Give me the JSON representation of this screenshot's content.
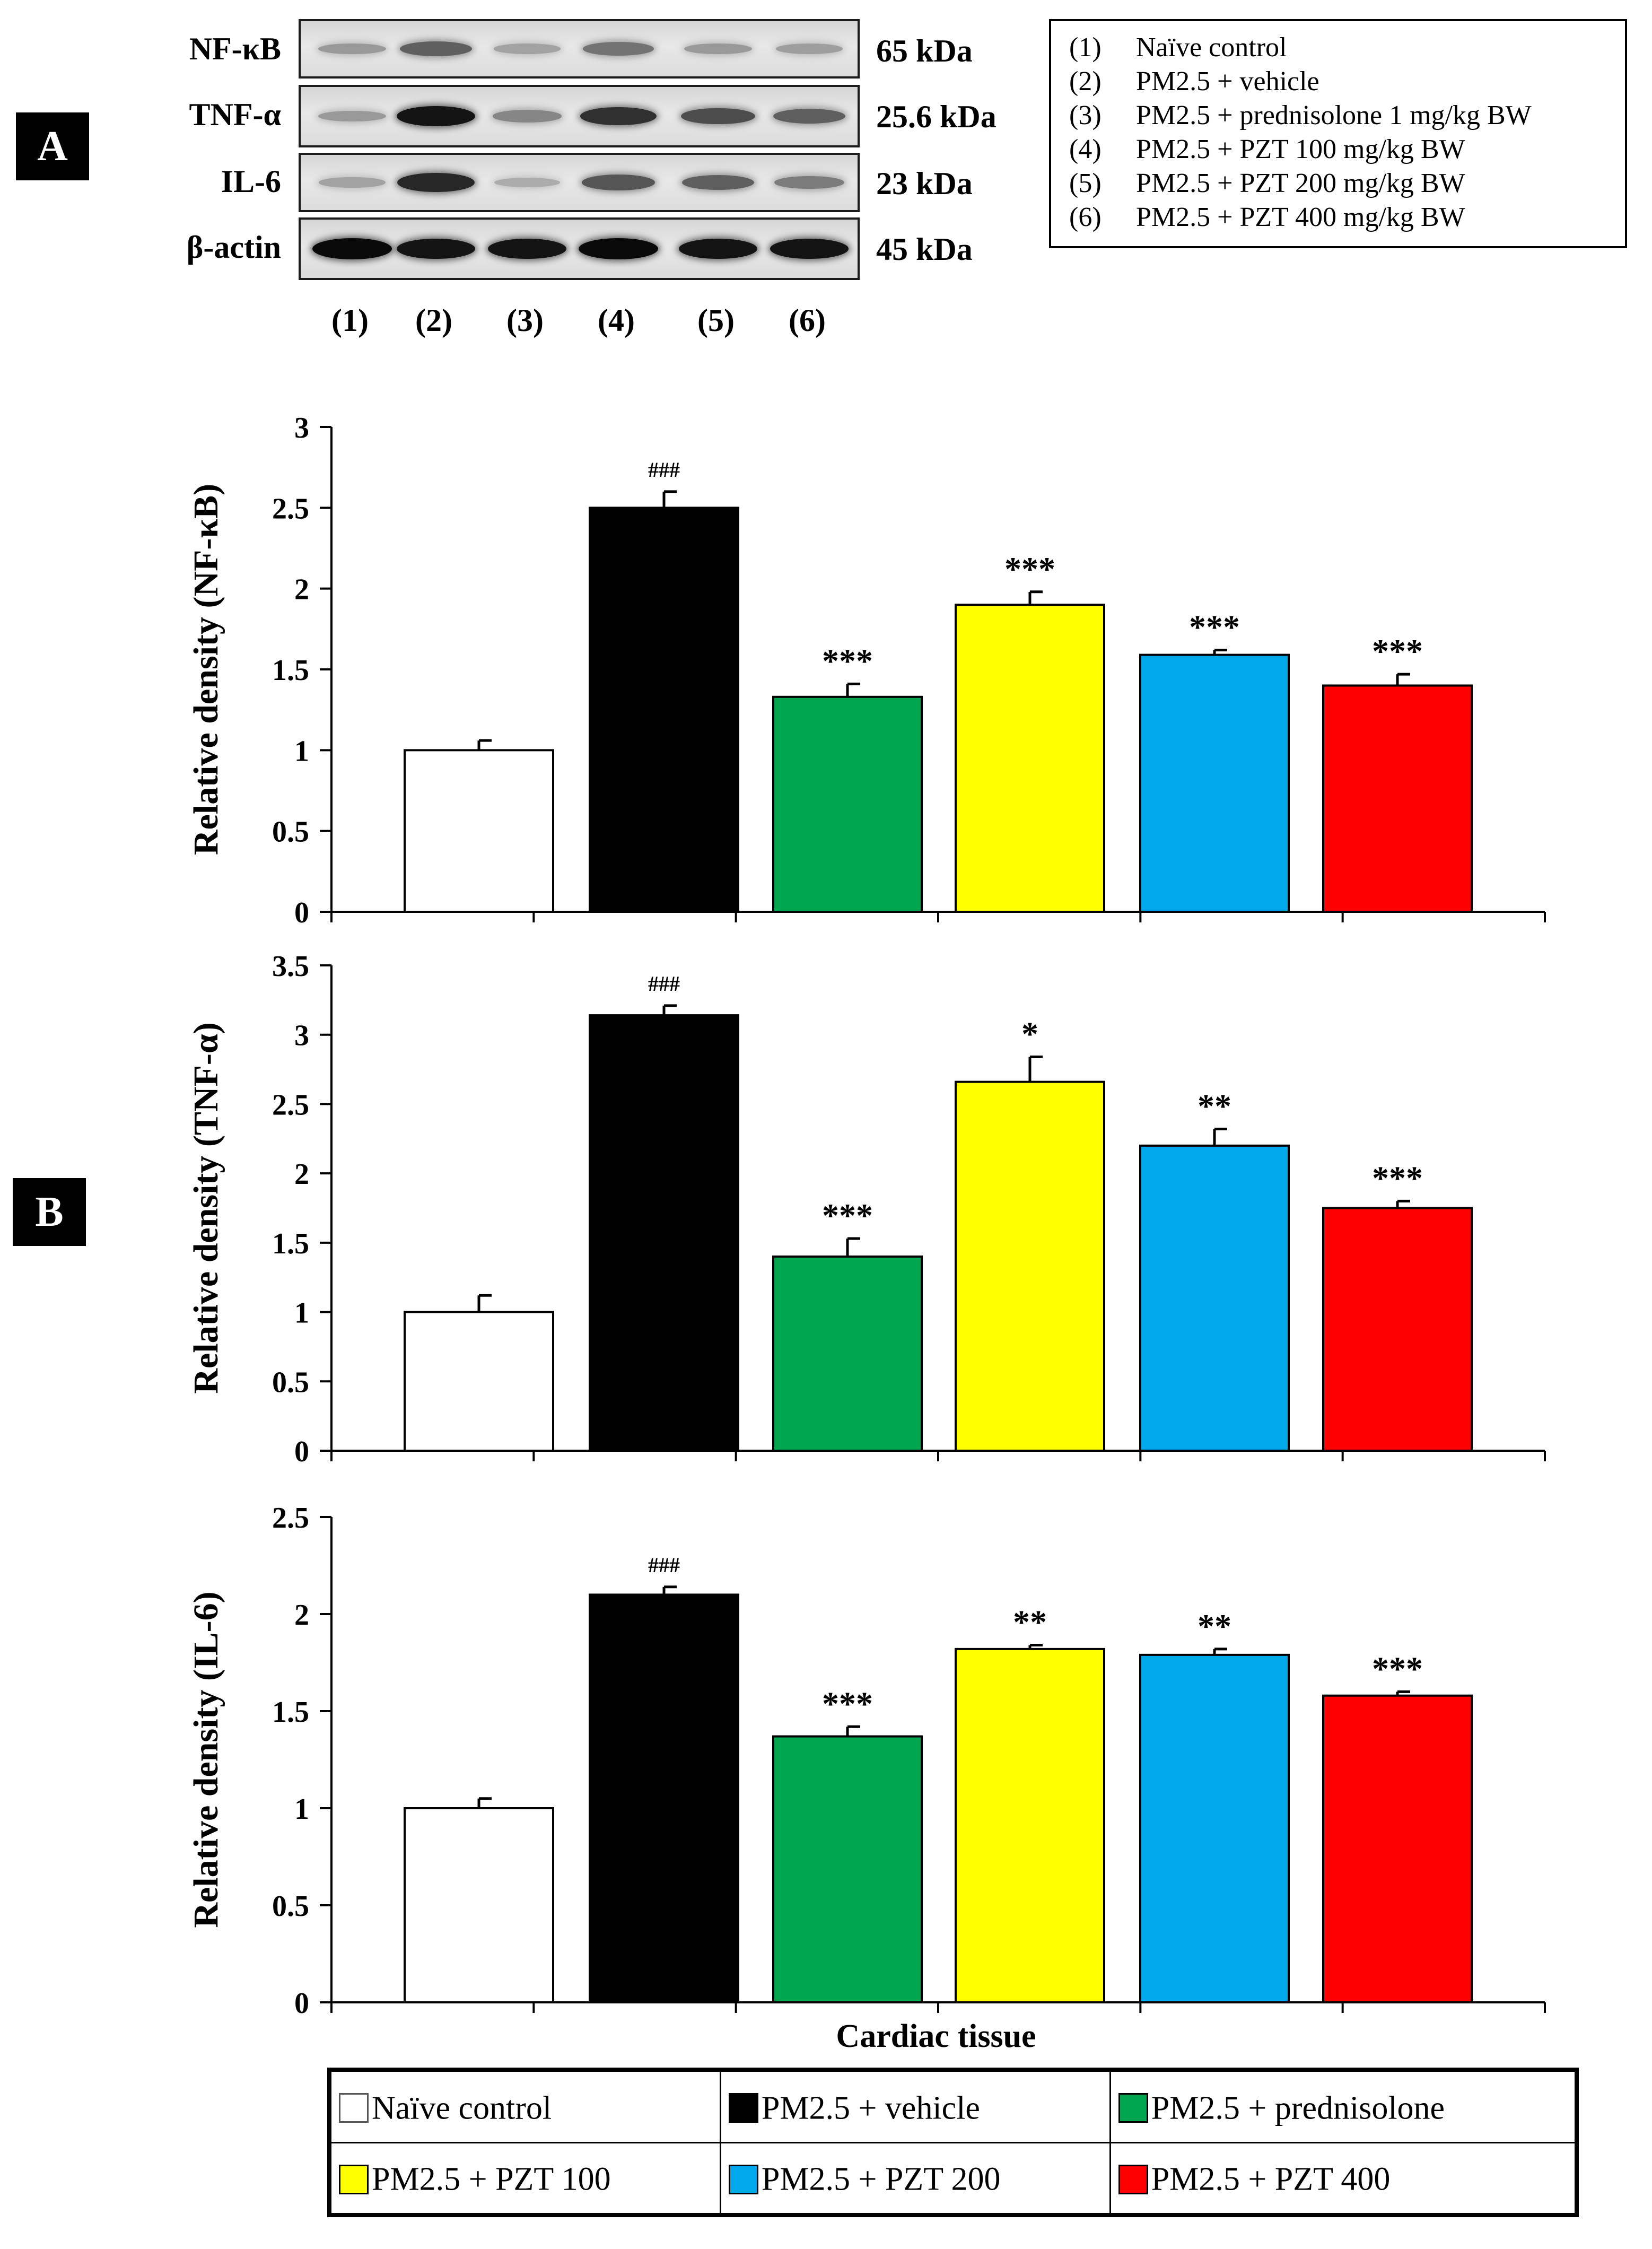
{
  "panel_labels": {
    "a": "A",
    "b": "B"
  },
  "blot": {
    "rows": [
      {
        "protein": "NF-κB",
        "kda": "65 kDa",
        "intensity": [
          0.25,
          0.55,
          0.2,
          0.45,
          0.25,
          0.22
        ]
      },
      {
        "protein": "TNF-α",
        "kda": "25.6 kDa",
        "intensity": [
          0.25,
          0.95,
          0.35,
          0.8,
          0.65,
          0.55
        ]
      },
      {
        "protein": "IL-6",
        "kda": "23 kDa",
        "intensity": [
          0.2,
          0.85,
          0.15,
          0.6,
          0.55,
          0.4
        ]
      },
      {
        "protein": "β-actin",
        "kda": "45 kDa",
        "intensity": [
          1.0,
          0.95,
          0.95,
          1.0,
          0.95,
          0.95
        ]
      }
    ],
    "lanes": [
      "(1)",
      "(2)",
      "(3)",
      "(4)",
      "(5)",
      "(6)"
    ]
  },
  "group_legend": [
    {
      "num": "(1)",
      "label": "Naïve control"
    },
    {
      "num": "(2)",
      "label": "PM2.5 + vehicle"
    },
    {
      "num": "(3)",
      "label": "PM2.5 + prednisolone 1 mg/kg BW"
    },
    {
      "num": "(4)",
      "label": "PM2.5 + PZT 100 mg/kg BW"
    },
    {
      "num": "(5)",
      "label": "PM2.5 + PZT 200 mg/kg BW"
    },
    {
      "num": "(6)",
      "label": "PM2.5 + PZT 400 mg/kg BW"
    }
  ],
  "colors": [
    "#ffffff",
    "#000000",
    "#00a650",
    "#ffff00",
    "#00a8ec",
    "#ff0000"
  ],
  "chart_data": [
    {
      "type": "bar",
      "ylabel": "Relative density (NF-κB)",
      "ylim": [
        0,
        3
      ],
      "ticks": [
        0,
        0.5,
        1,
        1.5,
        2,
        2.5,
        3
      ],
      "tick_labels": [
        "0",
        "0.5",
        "1",
        "1.5",
        "2",
        "2.5",
        "3"
      ],
      "values": [
        1.0,
        2.5,
        1.33,
        1.9,
        1.59,
        1.4
      ],
      "errors": [
        0.06,
        0.1,
        0.08,
        0.08,
        0.03,
        0.07
      ],
      "annotations": [
        "",
        "###",
        "***",
        "***",
        "***",
        "***"
      ]
    },
    {
      "type": "bar",
      "ylabel": "Relative density (TNF-α)",
      "ylim": [
        0,
        3.5
      ],
      "ticks": [
        0,
        0.5,
        1,
        1.5,
        2,
        2.5,
        3,
        3.5
      ],
      "tick_labels": [
        "0",
        "0.5",
        "1",
        "1.5",
        "2",
        "2.5",
        "3",
        "3.5"
      ],
      "values": [
        1.0,
        3.14,
        1.4,
        2.66,
        2.2,
        1.75
      ],
      "errors": [
        0.12,
        0.07,
        0.13,
        0.18,
        0.12,
        0.05
      ],
      "annotations": [
        "",
        "###",
        "***",
        "*",
        "**",
        "***"
      ]
    },
    {
      "type": "bar",
      "ylabel": "Relative density (IL-6)",
      "xlabel": "Cardiac tissue",
      "ylim": [
        0,
        2.5
      ],
      "ticks": [
        0,
        0.5,
        1,
        1.5,
        2,
        2.5
      ],
      "tick_labels": [
        "0",
        "0.5",
        "1",
        "1.5",
        "2",
        "2.5"
      ],
      "values": [
        1.0,
        2.1,
        1.37,
        1.82,
        1.79,
        1.58
      ],
      "errors": [
        0.05,
        0.04,
        0.05,
        0.02,
        0.03,
        0.02
      ],
      "annotations": [
        "",
        "###",
        "***",
        "**",
        "**",
        "***"
      ]
    }
  ],
  "bar_legend": [
    "Naïve control",
    "PM2.5 + vehicle",
    "PM2.5 + prednisolone",
    "PM2.5 + PZT 100",
    "PM2.5 + PZT 200",
    "PM2.5 + PZT 400"
  ]
}
